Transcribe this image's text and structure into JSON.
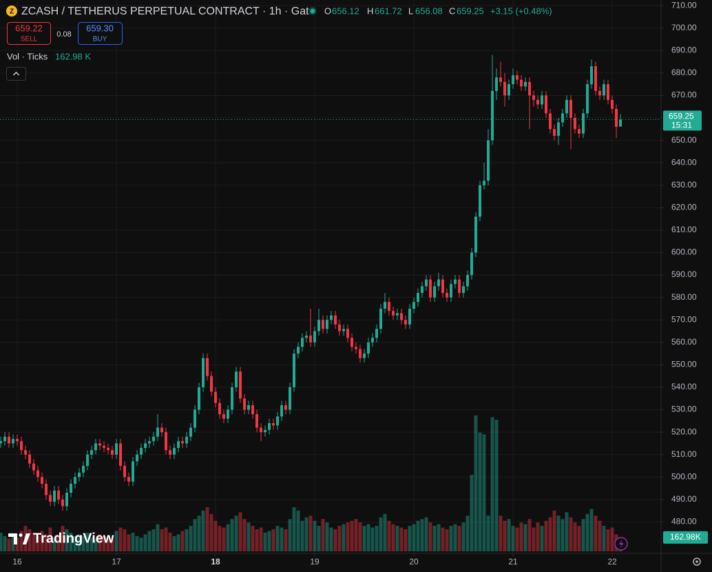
{
  "header": {
    "title": "ZCASH / TETHERUS PERPETUAL CONTRACT · 1h · Gate",
    "ohlc": [
      {
        "label": "O",
        "value": "656.12"
      },
      {
        "label": "H",
        "value": "661.72"
      },
      {
        "label": "L",
        "value": "656.08"
      },
      {
        "label": "C",
        "value": "659.25"
      }
    ],
    "change": "+3.15 (+0.48%)"
  },
  "trade": {
    "sell_price": "659.22",
    "sell_label": "SELL",
    "spread": "0.08",
    "buy_price": "659.30",
    "buy_label": "BUY"
  },
  "volume_legend": {
    "label": "Vol · Ticks",
    "value": "162.98 K"
  },
  "price_badge": {
    "price": "659.25",
    "countdown": "15:31"
  },
  "volume_badge": "162.98K",
  "logo": "TradingView",
  "chart_data": {
    "type": "candlestick",
    "up_color": "#22ab94",
    "down_color": "#f23645",
    "grid": true,
    "open": [
      515,
      516,
      518,
      515,
      517,
      516,
      512,
      510,
      506,
      503,
      500,
      497,
      492,
      489,
      494,
      490,
      487,
      493,
      497,
      500,
      502,
      505,
      510,
      512,
      515,
      514,
      513,
      512,
      510,
      515,
      505,
      500,
      498,
      507,
      510,
      513,
      515,
      516,
      518,
      522,
      520,
      512,
      510,
      513,
      516,
      515,
      518,
      522,
      530,
      540,
      553,
      545,
      538,
      533,
      528,
      526,
      530,
      540,
      547,
      535,
      530,
      532,
      528,
      522,
      520,
      521,
      524,
      523,
      527,
      532,
      530,
      540,
      555,
      558,
      562,
      563,
      560,
      565,
      570,
      566,
      570,
      572,
      568,
      565,
      566,
      562,
      558,
      557,
      553,
      555,
      560,
      562,
      566,
      575,
      578,
      574,
      572,
      573,
      570,
      568,
      575,
      578,
      582,
      585,
      588,
      580,
      585,
      588,
      582,
      580,
      586,
      588,
      582,
      585,
      590,
      600,
      616,
      630,
      632,
      650,
      672,
      678,
      676,
      670,
      675,
      679,
      677,
      674,
      676,
      670,
      668,
      666,
      670,
      662,
      655,
      652,
      658,
      662,
      668,
      660,
      655,
      653,
      662,
      675,
      683,
      672,
      670,
      675,
      668,
      664,
      656.12
    ],
    "high": [
      518,
      520,
      520,
      519,
      519,
      518,
      514,
      512,
      508,
      505,
      502,
      499,
      494,
      496,
      496,
      492,
      495,
      499,
      502,
      504,
      507,
      512,
      514,
      517,
      517,
      516,
      515,
      514,
      517,
      517,
      507,
      502,
      509,
      512,
      515,
      517,
      518,
      520,
      528,
      524,
      522,
      514,
      515,
      518,
      518,
      520,
      524,
      532,
      542,
      555,
      555,
      547,
      540,
      535,
      530,
      532,
      542,
      549,
      549,
      537,
      534,
      534,
      530,
      524,
      523,
      526,
      526,
      529,
      534,
      534,
      542,
      557,
      560,
      564,
      565,
      575,
      567,
      575,
      572,
      572,
      574,
      574,
      570,
      568,
      568,
      564,
      560,
      559,
      557,
      562,
      564,
      568,
      577,
      582,
      580,
      576,
      575,
      575,
      572,
      577,
      580,
      584,
      587,
      590,
      590,
      587,
      591,
      590,
      584,
      588,
      590,
      590,
      587,
      592,
      602,
      618,
      632,
      640,
      655,
      688,
      682,
      685,
      680,
      677,
      682,
      681,
      679,
      678,
      678,
      672,
      670,
      672,
      672,
      664,
      657,
      660,
      664,
      670,
      670,
      662,
      657,
      664,
      677,
      686,
      685,
      674,
      677,
      677,
      670,
      666,
      661.72
    ],
    "low": [
      513,
      514,
      513,
      513,
      514,
      510,
      508,
      504,
      501,
      498,
      495,
      490,
      487,
      487,
      488,
      485,
      485,
      491,
      495,
      498,
      500,
      503,
      508,
      510,
      512,
      511,
      510,
      508,
      508,
      503,
      498,
      496,
      496,
      505,
      508,
      511,
      513,
      514,
      516,
      518,
      510,
      508,
      508,
      511,
      513,
      513,
      516,
      520,
      528,
      538,
      543,
      536,
      531,
      526,
      524,
      524,
      528,
      538,
      533,
      528,
      528,
      526,
      520,
      516,
      518,
      519,
      521,
      521,
      525,
      528,
      528,
      538,
      553,
      556,
      560,
      558,
      558,
      563,
      564,
      564,
      568,
      566,
      563,
      563,
      560,
      556,
      555,
      551,
      551,
      553,
      558,
      560,
      564,
      573,
      572,
      570,
      570,
      568,
      566,
      566,
      573,
      576,
      580,
      583,
      578,
      578,
      583,
      580,
      578,
      578,
      584,
      580,
      580,
      583,
      588,
      598,
      614,
      628,
      630,
      648,
      668,
      674,
      665,
      668,
      673,
      675,
      672,
      672,
      655,
      665,
      664,
      664,
      660,
      653,
      650,
      648,
      656,
      660,
      646,
      653,
      651,
      651,
      660,
      673,
      670,
      668,
      668,
      666,
      662,
      651,
      656.08
    ],
    "close": [
      516,
      518,
      515,
      517,
      516,
      512,
      510,
      506,
      503,
      500,
      497,
      492,
      489,
      494,
      490,
      487,
      493,
      497,
      500,
      502,
      505,
      510,
      512,
      515,
      514,
      513,
      512,
      510,
      515,
      505,
      500,
      498,
      507,
      510,
      513,
      515,
      516,
      518,
      522,
      520,
      512,
      510,
      513,
      516,
      515,
      518,
      522,
      530,
      540,
      553,
      545,
      538,
      533,
      528,
      526,
      530,
      540,
      547,
      535,
      530,
      532,
      528,
      522,
      520,
      521,
      524,
      523,
      527,
      532,
      530,
      540,
      555,
      558,
      562,
      563,
      560,
      565,
      570,
      566,
      570,
      572,
      568,
      565,
      566,
      562,
      558,
      557,
      553,
      555,
      560,
      562,
      566,
      575,
      578,
      574,
      572,
      573,
      570,
      568,
      575,
      578,
      582,
      585,
      588,
      580,
      585,
      588,
      582,
      580,
      586,
      588,
      582,
      585,
      590,
      600,
      616,
      630,
      632,
      650,
      672,
      678,
      676,
      670,
      675,
      679,
      677,
      674,
      676,
      670,
      668,
      666,
      670,
      662,
      655,
      652,
      658,
      662,
      668,
      660,
      655,
      653,
      662,
      675,
      683,
      672,
      670,
      675,
      668,
      664,
      656,
      659.25
    ],
    "volume": [
      220,
      180,
      150,
      200,
      160,
      240,
      300,
      260,
      220,
      180,
      240,
      200,
      280,
      160,
      200,
      300,
      260,
      220,
      180,
      200,
      180,
      220,
      160,
      140,
      200,
      180,
      160,
      150,
      240,
      280,
      260,
      200,
      220,
      180,
      160,
      200,
      240,
      260,
      320,
      260,
      280,
      220,
      180,
      200,
      240,
      260,
      300,
      380,
      420,
      480,
      520,
      440,
      360,
      300,
      280,
      320,
      380,
      420,
      460,
      380,
      340,
      300,
      260,
      280,
      220,
      240,
      260,
      300,
      280,
      260,
      380,
      520,
      480,
      360,
      400,
      420,
      360,
      300,
      380,
      340,
      280,
      260,
      300,
      320,
      340,
      360,
      380,
      340,
      300,
      320,
      280,
      300,
      400,
      440,
      360,
      320,
      300,
      280,
      260,
      300,
      320,
      360,
      380,
      400,
      340,
      300,
      320,
      280,
      260,
      300,
      320,
      300,
      340,
      420,
      900,
      1600,
      1400,
      1380,
      420,
      1580,
      1550,
      420,
      360,
      380,
      300,
      280,
      340,
      320,
      380,
      280,
      340,
      300,
      360,
      400,
      480,
      420,
      380,
      460,
      400,
      340,
      300,
      380,
      440,
      500,
      420,
      360,
      300,
      260,
      280,
      200,
      162.98
    ],
    "ylim": [
      466,
      712.5
    ],
    "yticks": [
      {
        "value": 480,
        "label": "480.00"
      },
      {
        "value": 490,
        "label": "490.00"
      },
      {
        "value": 500,
        "label": "500.00"
      },
      {
        "value": 510,
        "label": "510.00"
      },
      {
        "value": 520,
        "label": "520.00"
      },
      {
        "value": 530,
        "label": "530.00"
      },
      {
        "value": 540,
        "label": "540.00"
      },
      {
        "value": 550,
        "label": "550.00"
      },
      {
        "value": 560,
        "label": "560.00"
      },
      {
        "value": 570,
        "label": "570.00"
      },
      {
        "value": 580,
        "label": "580.00"
      },
      {
        "value": 590,
        "label": "590.00"
      },
      {
        "value": 600,
        "label": "600.00"
      },
      {
        "value": 610,
        "label": "610.00"
      },
      {
        "value": 620,
        "label": "620.00"
      },
      {
        "value": 630,
        "label": "630.00"
      },
      {
        "value": 640,
        "label": "640.00"
      },
      {
        "value": 650,
        "label": "650.00"
      },
      {
        "value": 660,
        "label": "660.00"
      },
      {
        "value": 670,
        "label": "670.00"
      },
      {
        "value": 680,
        "label": "680.00"
      },
      {
        "value": 690,
        "label": "690.00"
      },
      {
        "value": 700,
        "label": "700.00"
      },
      {
        "value": 710,
        "label": "710.00"
      }
    ],
    "xlim": [
      -0.17,
      159.83
    ],
    "xticks": [
      {
        "value": 4,
        "label": "16"
      },
      {
        "value": 28,
        "label": "17"
      },
      {
        "value": 52,
        "label": "18"
      },
      {
        "value": 76,
        "label": "19"
      },
      {
        "value": 100,
        "label": "20"
      },
      {
        "value": 124,
        "label": "21"
      },
      {
        "value": 148,
        "label": "22"
      }
    ]
  }
}
